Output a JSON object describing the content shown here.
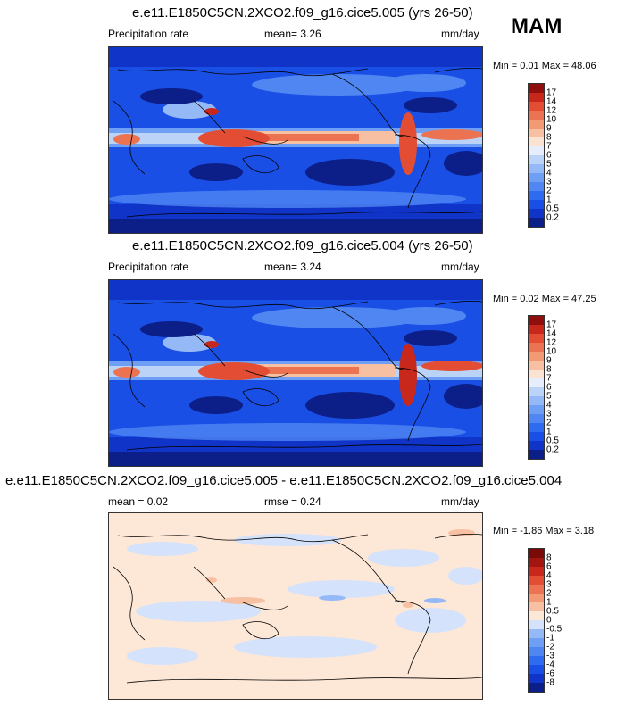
{
  "season": "MAM",
  "panels": [
    {
      "title": "e.e11.E1850C5CN.2XCO2.f09_g16.cice5.005 (yrs 26-50)",
      "left_label": "Precipitation rate",
      "center_label": "mean=   3.26",
      "units": "mm/day",
      "minmax": "Min =   0.01 Max =  48.06"
    },
    {
      "title": "e.e11.E1850C5CN.2XCO2.f09_g16.cice5.004 (yrs 26-50)",
      "left_label": "Precipitation rate",
      "center_label": "mean=   3.24",
      "units": "mm/day",
      "minmax": "Min =   0.02 Max =  47.25"
    },
    {
      "title": "e.e11.E1850C5CN.2XCO2.f09_g16.cice5.005 - e.e11.E1850C5CN.2XCO2.f09_g16.cice5.004",
      "left_label": "mean =   0.02",
      "center_label": "rmse =   0.24",
      "units": "mm/day",
      "minmax": "Min =  -1.86 Max =   3.18"
    }
  ],
  "chart_data": [
    {
      "type": "heatmap",
      "title": "e.e11.E1850C5CN.2XCO2.f09_g16.cice5.005 (yrs 26-50)",
      "variable": "Precipitation rate",
      "units": "mm/day",
      "mean": 3.26,
      "min": 0.01,
      "max": 48.06,
      "colorbar_levels": [
        "0.2",
        "0.5",
        "1",
        "2",
        "3",
        "4",
        "5",
        "6",
        "7",
        "8",
        "9",
        "10",
        "12",
        "14",
        "17"
      ],
      "colorbar_colors": [
        "#0c1f88",
        "#1033c8",
        "#1a4fe6",
        "#2f6bf0",
        "#4f86f2",
        "#6f9ff4",
        "#95b9f6",
        "#bcd3f8",
        "#e6eefb",
        "#fbe3d3",
        "#f7c0a3",
        "#f29a74",
        "#ec7352",
        "#e24d33",
        "#c8271c",
        "#8f0f0d"
      ]
    },
    {
      "type": "heatmap",
      "title": "e.e11.E1850C5CN.2XCO2.f09_g16.cice5.004 (yrs 26-50)",
      "variable": "Precipitation rate",
      "units": "mm/day",
      "mean": 3.24,
      "min": 0.02,
      "max": 47.25,
      "colorbar_levels": [
        "0.2",
        "0.5",
        "1",
        "2",
        "3",
        "4",
        "5",
        "6",
        "7",
        "8",
        "9",
        "10",
        "12",
        "14",
        "17"
      ],
      "colorbar_colors": [
        "#0c1f88",
        "#1033c8",
        "#1a4fe6",
        "#2f6bf0",
        "#4f86f2",
        "#6f9ff4",
        "#95b9f6",
        "#bcd3f8",
        "#e6eefb",
        "#fbe3d3",
        "#f7c0a3",
        "#f29a74",
        "#ec7352",
        "#e24d33",
        "#c8271c",
        "#8f0f0d"
      ]
    },
    {
      "type": "heatmap",
      "title": "e.e11.E1850C5CN.2XCO2.f09_g16.cice5.005 - e.e11.E1850C5CN.2XCO2.f09_g16.cice5.004",
      "units": "mm/day",
      "mean": 0.02,
      "rmse": 0.24,
      "min": -1.86,
      "max": 3.18,
      "colorbar_levels": [
        "-8",
        "-6",
        "-4",
        "-3",
        "-2",
        "-1",
        "-0.5",
        "0",
        "0.5",
        "1",
        "2",
        "3",
        "4",
        "6",
        "8"
      ],
      "colorbar_colors": [
        "#0c1f88",
        "#1033c8",
        "#1a4fe6",
        "#2f6bf0",
        "#4f86f2",
        "#6f9ff4",
        "#95b9f6",
        "#d4e3fb",
        "#fde7d6",
        "#f7c0a3",
        "#f29a74",
        "#ec7352",
        "#e24d33",
        "#c8271c",
        "#a31610",
        "#7a0a08"
      ]
    }
  ]
}
